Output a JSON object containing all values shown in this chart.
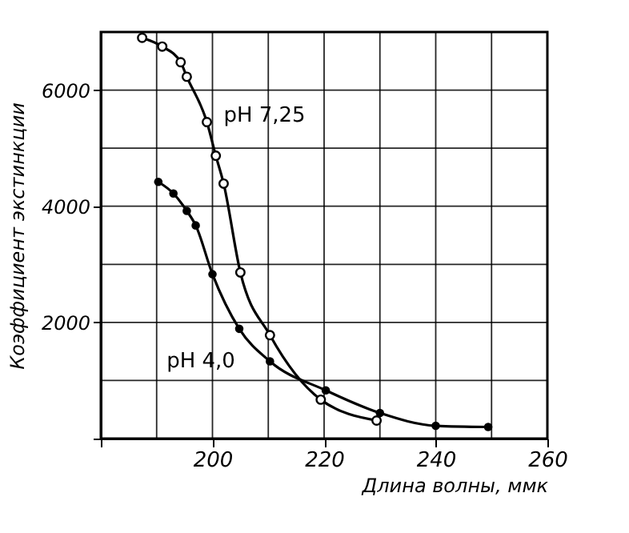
{
  "chart_data": {
    "type": "line",
    "xlabel": "Длина волны, ммк",
    "ylabel": "Коэффициент экстинкции",
    "xlim": [
      180,
      260
    ],
    "ylim": [
      0,
      7000
    ],
    "xticks": [
      {
        "value": 180,
        "label": null
      },
      {
        "value": 190,
        "label": null
      },
      200,
      {
        "value": 210,
        "label": null
      },
      220,
      {
        "value": 230,
        "label": null
      },
      240,
      {
        "value": 250,
        "label": null
      },
      260
    ],
    "yticks": [
      {
        "value": 0,
        "label": null
      },
      {
        "value": 1000,
        "label": null
      },
      2000,
      {
        "value": 3000,
        "label": null
      },
      4000,
      {
        "value": 5000,
        "label": null
      },
      6000,
      {
        "value": 7000,
        "label": null
      }
    ],
    "grid": true,
    "marker": "circle",
    "line_style": "solid",
    "series": [
      {
        "name": "pH 7,25",
        "color": "#000000",
        "x": [
          187.4,
          191,
          194.3,
          195.4,
          199,
          200.6,
          202,
          205,
          210.3,
          219.4,
          229.4
        ],
        "values": [
          6900,
          6750,
          6480,
          6230,
          5450,
          4870,
          4390,
          2860,
          1780,
          670,
          310
        ]
      },
      {
        "name": "pH 4,0",
        "color": "#000000",
        "x": [
          190.3,
          193,
          195.4,
          197,
          200,
          204.8,
          210.3,
          220.3,
          230,
          240,
          249.4
        ],
        "values": [
          4420,
          4220,
          3920,
          3670,
          2830,
          1890,
          1330,
          830,
          440,
          220,
          200
        ]
      }
    ]
  }
}
